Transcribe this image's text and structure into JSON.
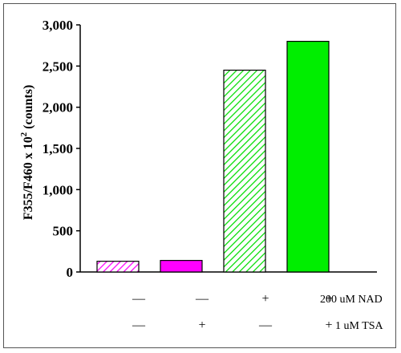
{
  "chart_data": {
    "type": "bar",
    "title": "",
    "ylabel_main": "F355/F460 x 10",
    "ylabel_sup": "2",
    "ylabel_suffix": " (counts)",
    "ylim": [
      0,
      3000
    ],
    "yticks": [
      0,
      500,
      1000,
      1500,
      2000,
      2500,
      3000
    ],
    "ytick_labels": [
      "0",
      "500",
      "1,000",
      "1,500",
      "2,000",
      "2,500",
      "3,000"
    ],
    "grid": false,
    "bars": [
      {
        "value": 130,
        "fill": "#ff00ff",
        "pattern": "hatched"
      },
      {
        "value": 140,
        "fill": "#ff00ff",
        "pattern": "solid"
      },
      {
        "value": 2450,
        "fill": "#00dd00",
        "pattern": "hatched"
      },
      {
        "value": 2800,
        "fill": "#00ee00",
        "pattern": "solid"
      }
    ],
    "conditions": [
      {
        "label": "200 uM NAD",
        "marks": [
          "—",
          "—",
          "+",
          "+"
        ]
      },
      {
        "label": "1 uM TSA",
        "marks": [
          "—",
          "+",
          "—",
          "+"
        ]
      }
    ]
  },
  "colors": {
    "magenta": "#ff00ff",
    "green": "#00dd00",
    "axis": "#000000"
  }
}
